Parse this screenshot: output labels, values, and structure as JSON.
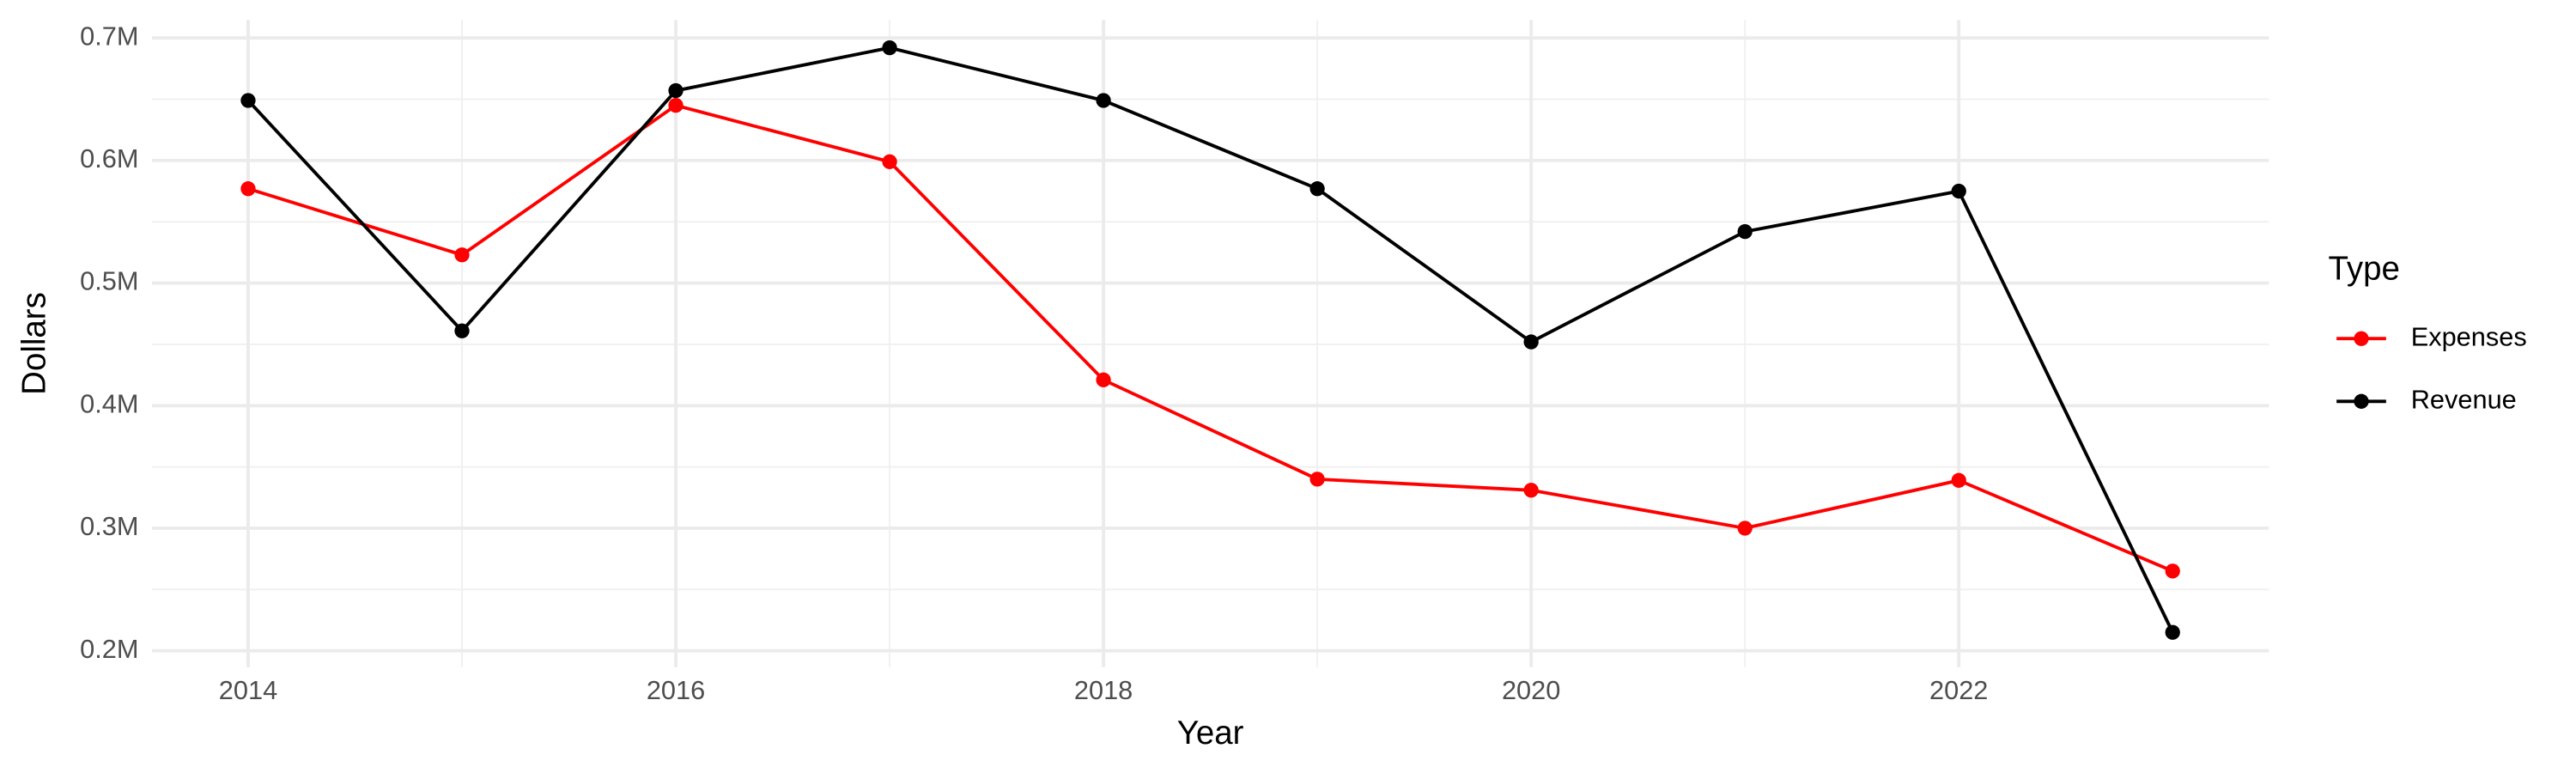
{
  "chart_data": {
    "type": "line",
    "x_label": "Year",
    "y_label": "Dollars",
    "legend_title": "Type",
    "x": [
      2014,
      2015,
      2016,
      2017,
      2018,
      2019,
      2020,
      2021,
      2022,
      2023
    ],
    "series": [
      {
        "name": "Expenses",
        "color": "#ff0000",
        "values": [
          577000,
          523000,
          645000,
          599000,
          421000,
          340000,
          331000,
          300000,
          339000,
          265000
        ]
      },
      {
        "name": "Revenue",
        "color": "#000000",
        "values": [
          649000,
          461000,
          657000,
          692000,
          649000,
          577000,
          452000,
          542000,
          575000,
          215000
        ]
      }
    ],
    "xlim": [
      2013.55,
      2023.45
    ],
    "xticks": [
      2014,
      2016,
      2018,
      2020,
      2022
    ],
    "ylim": [
      186500,
      714800
    ],
    "yticks": [
      {
        "value": 200000,
        "label": "0.2M"
      },
      {
        "value": 300000,
        "label": "0.3M"
      },
      {
        "value": 400000,
        "label": "0.4M"
      },
      {
        "value": 500000,
        "label": "0.5M"
      },
      {
        "value": 600000,
        "label": "0.6M"
      },
      {
        "value": 700000,
        "label": "0.7M"
      }
    ],
    "grid": true,
    "legend_position": "right"
  }
}
